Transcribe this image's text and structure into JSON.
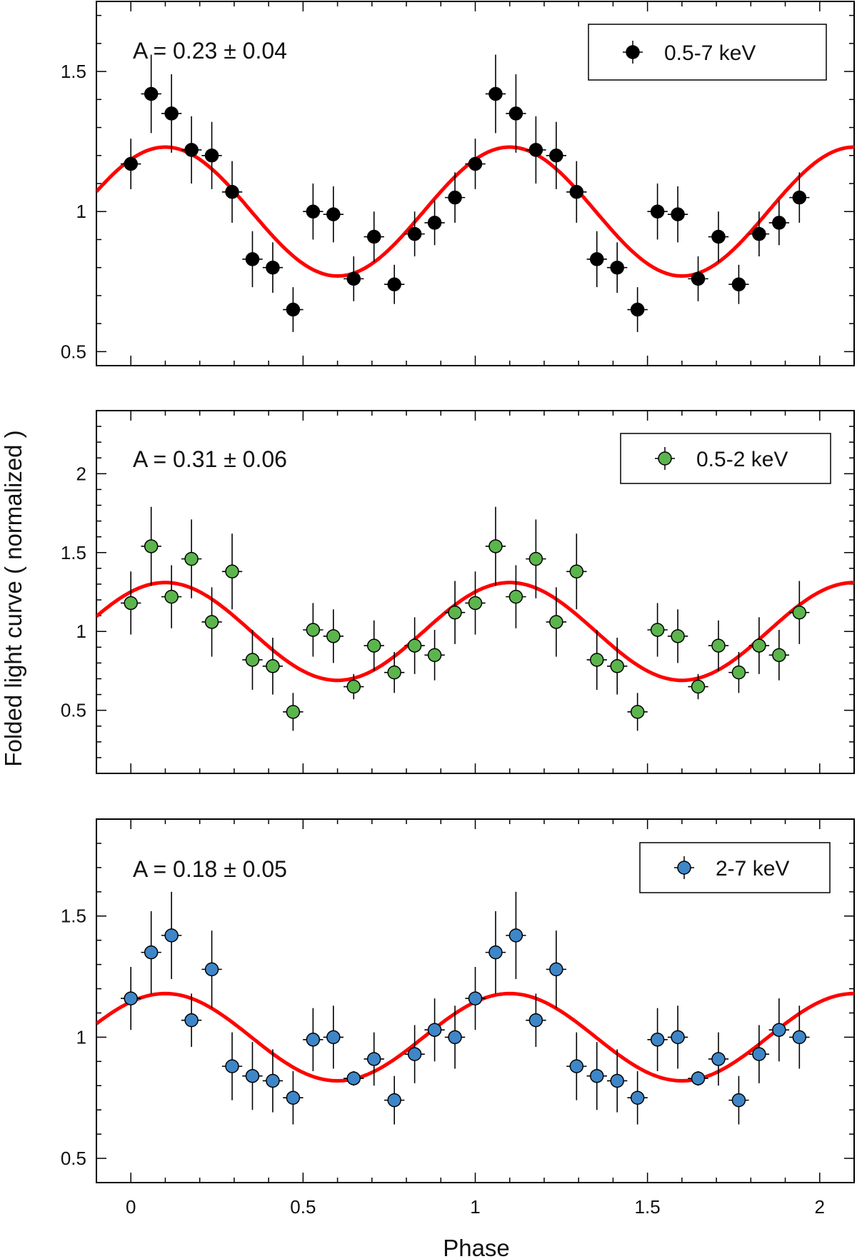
{
  "figure": {
    "ylabel": "Folded light curve ( normalized )",
    "xlabel": "Phase",
    "xlim": [
      -0.1,
      2.1
    ],
    "xticks": [
      0,
      0.5,
      1,
      1.5,
      2
    ],
    "xtick_labels": [
      "0",
      "0.5",
      "1",
      "1.5",
      "2"
    ]
  },
  "chart_data": [
    {
      "type": "scatter",
      "title": "",
      "legend": "0.5-7 keV",
      "legend_position": "top-right",
      "annotation": "A = 0.23 ± 0.04",
      "marker_color": "#000000",
      "fit_color": "#ff0000",
      "ylim": [
        0.45,
        1.75
      ],
      "yticks": [
        0.5,
        1,
        1.5
      ],
      "ytick_labels": [
        "0.5",
        "1",
        "1.5"
      ],
      "fit": {
        "mean": 1.0,
        "amplitude": 0.23,
        "peak_phase": 0.1
      },
      "x": [
        0,
        0.059,
        0.118,
        0.176,
        0.235,
        0.294,
        0.353,
        0.412,
        0.471,
        0.529,
        0.588,
        0.647,
        0.706,
        0.765,
        0.824,
        0.882,
        0.941,
        1.0,
        1.059,
        1.118,
        1.176,
        1.235,
        1.294,
        1.353,
        1.412,
        1.471,
        1.529,
        1.588,
        1.647,
        1.706,
        1.765,
        1.824,
        1.882,
        1.941
      ],
      "y": [
        1.17,
        1.42,
        1.35,
        1.22,
        1.2,
        1.07,
        0.83,
        0.8,
        0.65,
        1.0,
        0.99,
        0.76,
        0.91,
        0.74,
        0.92,
        0.96,
        1.05,
        1.17,
        1.42,
        1.35,
        1.22,
        1.2,
        1.07,
        0.83,
        0.8,
        0.65,
        1.0,
        0.99,
        0.76,
        0.91,
        0.74,
        0.92,
        0.96,
        1.05
      ],
      "yerr": [
        0.09,
        0.14,
        0.14,
        0.12,
        0.12,
        0.11,
        0.1,
        0.09,
        0.08,
        0.1,
        0.1,
        0.08,
        0.09,
        0.07,
        0.08,
        0.08,
        0.09,
        0.09,
        0.14,
        0.14,
        0.12,
        0.12,
        0.11,
        0.1,
        0.09,
        0.08,
        0.1,
        0.1,
        0.08,
        0.09,
        0.07,
        0.08,
        0.08,
        0.09
      ],
      "xerr": 0.0294
    },
    {
      "type": "scatter",
      "title": "",
      "legend": "0.5-2 keV",
      "legend_position": "top-right",
      "annotation": "A = 0.31 ± 0.06",
      "marker_color": "#5cb54c",
      "fit_color": "#ff0000",
      "ylim": [
        0.1,
        2.4
      ],
      "yticks": [
        0.5,
        1,
        1.5,
        2
      ],
      "ytick_labels": [
        "0.5",
        "1",
        "1.5",
        "2"
      ],
      "fit": {
        "mean": 1.0,
        "amplitude": 0.31,
        "peak_phase": 0.1
      },
      "x": [
        0,
        0.059,
        0.118,
        0.176,
        0.235,
        0.294,
        0.353,
        0.412,
        0.471,
        0.529,
        0.588,
        0.647,
        0.706,
        0.765,
        0.824,
        0.882,
        0.941,
        1.0,
        1.059,
        1.118,
        1.176,
        1.235,
        1.294,
        1.353,
        1.412,
        1.471,
        1.529,
        1.588,
        1.647,
        1.706,
        1.765,
        1.824,
        1.882,
        1.941
      ],
      "y": [
        1.18,
        1.54,
        1.22,
        1.46,
        1.06,
        1.38,
        0.82,
        0.78,
        0.49,
        1.01,
        0.97,
        0.65,
        0.91,
        0.74,
        0.91,
        0.85,
        1.12,
        1.18,
        1.54,
        1.22,
        1.46,
        1.06,
        1.38,
        0.82,
        0.78,
        0.49,
        1.01,
        0.97,
        0.65,
        0.91,
        0.74,
        0.91,
        0.85,
        1.12
      ],
      "yerr": [
        0.2,
        0.25,
        0.2,
        0.25,
        0.22,
        0.24,
        0.19,
        0.18,
        0.12,
        0.17,
        0.17,
        0.08,
        0.16,
        0.13,
        0.18,
        0.16,
        0.2,
        0.2,
        0.25,
        0.2,
        0.25,
        0.22,
        0.24,
        0.19,
        0.18,
        0.12,
        0.17,
        0.17,
        0.08,
        0.16,
        0.13,
        0.18,
        0.16,
        0.2
      ],
      "xerr": 0.0294
    },
    {
      "type": "scatter",
      "title": "",
      "legend": "2-7 keV",
      "legend_position": "top-right",
      "annotation": "A = 0.18 ± 0.05",
      "marker_color": "#3e86c8",
      "fit_color": "#ff0000",
      "ylim": [
        0.4,
        1.9
      ],
      "yticks": [
        0.5,
        1,
        1.5
      ],
      "ytick_labels": [
        "0.5",
        "1",
        "1.5"
      ],
      "fit": {
        "mean": 1.0,
        "amplitude": 0.18,
        "peak_phase": 0.1
      },
      "x": [
        0,
        0.059,
        0.118,
        0.176,
        0.235,
        0.294,
        0.353,
        0.412,
        0.471,
        0.529,
        0.588,
        0.647,
        0.706,
        0.765,
        0.824,
        0.882,
        0.941,
        1.0,
        1.059,
        1.118,
        1.176,
        1.235,
        1.294,
        1.353,
        1.412,
        1.471,
        1.529,
        1.588,
        1.647,
        1.706,
        1.765,
        1.824,
        1.882,
        1.941
      ],
      "y": [
        1.16,
        1.35,
        1.42,
        1.07,
        1.28,
        0.88,
        0.84,
        0.82,
        0.75,
        0.99,
        1.0,
        0.83,
        0.91,
        0.74,
        0.93,
        1.03,
        1.0,
        1.16,
        1.35,
        1.42,
        1.07,
        1.28,
        0.88,
        0.84,
        0.82,
        0.75,
        0.99,
        1.0,
        0.83,
        0.91,
        0.74,
        0.93,
        1.03,
        1.0
      ],
      "yerr": [
        0.13,
        0.17,
        0.18,
        0.11,
        0.16,
        0.14,
        0.14,
        0.13,
        0.11,
        0.13,
        0.13,
        0.03,
        0.11,
        0.1,
        0.12,
        0.13,
        0.13,
        0.13,
        0.17,
        0.18,
        0.11,
        0.16,
        0.14,
        0.14,
        0.13,
        0.11,
        0.13,
        0.13,
        0.03,
        0.11,
        0.1,
        0.12,
        0.13,
        0.13
      ],
      "xerr": 0.0294
    }
  ]
}
